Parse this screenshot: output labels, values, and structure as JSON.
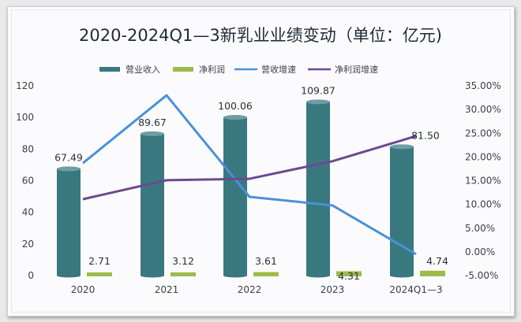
{
  "chart_data": {
    "type": "bar",
    "title": "2020-2024Q1—3新乳业业绩变动（单位：亿元)",
    "categories": [
      "2020",
      "2021",
      "2022",
      "2023",
      "2024Q1—3"
    ],
    "series": [
      {
        "name": "营业收入",
        "kind": "bar",
        "axis": "left",
        "color": "#3a7880",
        "values": [
          67.49,
          89.67,
          100.06,
          109.87,
          81.5
        ],
        "labels": [
          "67.49",
          "89.67",
          "100.06",
          "109.87",
          "81.50"
        ]
      },
      {
        "name": "净利润",
        "kind": "bar",
        "axis": "left",
        "color": "#9dbb4b",
        "values": [
          2.71,
          3.12,
          3.61,
          4.31,
          4.74
        ],
        "labels": [
          "2.71",
          "3.12",
          "3.61",
          "4.31",
          "4.74"
        ]
      },
      {
        "name": "营收增速",
        "kind": "line",
        "axis": "right",
        "color": "#4a90d9",
        "values": [
          18.7,
          33.0,
          11.6,
          9.8,
          -0.5
        ]
      },
      {
        "name": "净利润增速",
        "kind": "line",
        "axis": "right",
        "color": "#6b4a8f",
        "values": [
          11.1,
          15.1,
          15.4,
          19.1,
          24.4
        ]
      }
    ],
    "left_axis": {
      "ylim": [
        0,
        120
      ],
      "ticks": [
        "0",
        "20",
        "40",
        "60",
        "80",
        "100",
        "120"
      ]
    },
    "right_axis": {
      "ylim": [
        -5,
        35
      ],
      "ticks": [
        "-5.00%",
        "0.00%",
        "5.00%",
        "10.00%",
        "15.00%",
        "20.00%",
        "25.00%",
        "30.00%",
        "35.00%"
      ]
    },
    "legend_position": "top-center",
    "grid": false
  }
}
